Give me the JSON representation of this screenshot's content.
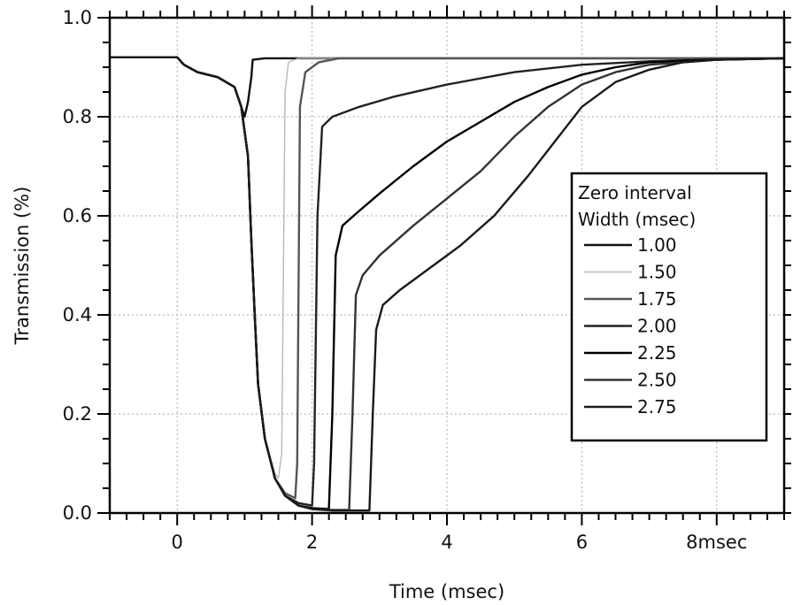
{
  "chart_data": {
    "type": "line",
    "title": "",
    "xlabel": "Time (msec)",
    "ylabel": "Transmission (%)",
    "xlim": [
      -1,
      9
    ],
    "ylim": [
      0.0,
      1.0
    ],
    "grid": true,
    "legend_position": "right",
    "x_ticks": [
      {
        "value": 0,
        "label": "0"
      },
      {
        "value": 2,
        "label": "2"
      },
      {
        "value": 4,
        "label": "4"
      },
      {
        "value": 6,
        "label": "6"
      },
      {
        "value": 8,
        "label": "8msec"
      }
    ],
    "y_ticks": [
      {
        "value": 0.0,
        "label": "0.0"
      },
      {
        "value": 0.2,
        "label": "0.2"
      },
      {
        "value": 0.4,
        "label": "0.4"
      },
      {
        "value": 0.6,
        "label": "0.6"
      },
      {
        "value": 0.8,
        "label": "0.8"
      },
      {
        "value": 1.0,
        "label": "1.0"
      }
    ],
    "legend": {
      "title_line1": "Zero interval",
      "title_line2": "Width (msec)"
    },
    "series": [
      {
        "name": "1.00",
        "color": "#111111",
        "points": [
          [
            -1,
            0.92
          ],
          [
            0,
            0.92
          ],
          [
            0.1,
            0.905
          ],
          [
            0.3,
            0.89
          ],
          [
            0.6,
            0.88
          ],
          [
            0.85,
            0.86
          ],
          [
            0.95,
            0.82
          ],
          [
            1.0,
            0.8
          ],
          [
            1.05,
            0.83
          ],
          [
            1.1,
            0.88
          ],
          [
            1.12,
            0.915
          ],
          [
            1.3,
            0.918
          ],
          [
            9,
            0.918
          ]
        ]
      },
      {
        "name": "1.50",
        "color": "#b8b8b8",
        "points": [
          [
            -1,
            0.92
          ],
          [
            0,
            0.92
          ],
          [
            0.1,
            0.905
          ],
          [
            0.3,
            0.89
          ],
          [
            0.6,
            0.88
          ],
          [
            0.85,
            0.86
          ],
          [
            0.95,
            0.82
          ],
          [
            1.05,
            0.72
          ],
          [
            1.1,
            0.55
          ],
          [
            1.15,
            0.4
          ],
          [
            1.2,
            0.26
          ],
          [
            1.3,
            0.15
          ],
          [
            1.45,
            0.08
          ],
          [
            1.5,
            0.07
          ],
          [
            1.55,
            0.12
          ],
          [
            1.6,
            0.85
          ],
          [
            1.65,
            0.91
          ],
          [
            1.8,
            0.918
          ],
          [
            9,
            0.918
          ]
        ]
      },
      {
        "name": "1.75",
        "color": "#555555",
        "points": [
          [
            -1,
            0.92
          ],
          [
            0,
            0.92
          ],
          [
            0.1,
            0.905
          ],
          [
            0.3,
            0.89
          ],
          [
            0.6,
            0.88
          ],
          [
            0.85,
            0.86
          ],
          [
            0.95,
            0.82
          ],
          [
            1.05,
            0.72
          ],
          [
            1.1,
            0.55
          ],
          [
            1.15,
            0.4
          ],
          [
            1.2,
            0.26
          ],
          [
            1.3,
            0.15
          ],
          [
            1.45,
            0.07
          ],
          [
            1.6,
            0.04
          ],
          [
            1.75,
            0.03
          ],
          [
            1.78,
            0.1
          ],
          [
            1.82,
            0.82
          ],
          [
            1.9,
            0.89
          ],
          [
            2.1,
            0.91
          ],
          [
            2.4,
            0.918
          ],
          [
            9,
            0.918
          ]
        ]
      },
      {
        "name": "2.00",
        "color": "#222222",
        "points": [
          [
            -1,
            0.92
          ],
          [
            0,
            0.92
          ],
          [
            0.1,
            0.905
          ],
          [
            0.3,
            0.89
          ],
          [
            0.6,
            0.88
          ],
          [
            0.85,
            0.86
          ],
          [
            0.95,
            0.82
          ],
          [
            1.05,
            0.72
          ],
          [
            1.1,
            0.55
          ],
          [
            1.15,
            0.4
          ],
          [
            1.2,
            0.26
          ],
          [
            1.3,
            0.15
          ],
          [
            1.45,
            0.07
          ],
          [
            1.6,
            0.035
          ],
          [
            1.8,
            0.02
          ],
          [
            2.0,
            0.015
          ],
          [
            2.03,
            0.1
          ],
          [
            2.08,
            0.6
          ],
          [
            2.15,
            0.78
          ],
          [
            2.3,
            0.8
          ],
          [
            2.7,
            0.82
          ],
          [
            3.2,
            0.84
          ],
          [
            4.0,
            0.865
          ],
          [
            5.0,
            0.89
          ],
          [
            6.0,
            0.905
          ],
          [
            7.0,
            0.912
          ],
          [
            8.0,
            0.916
          ],
          [
            9,
            0.918
          ]
        ]
      },
      {
        "name": "2.25",
        "color": "#000000",
        "points": [
          [
            -1,
            0.92
          ],
          [
            0,
            0.92
          ],
          [
            0.1,
            0.905
          ],
          [
            0.3,
            0.89
          ],
          [
            0.6,
            0.88
          ],
          [
            0.85,
            0.86
          ],
          [
            0.95,
            0.82
          ],
          [
            1.05,
            0.72
          ],
          [
            1.1,
            0.55
          ],
          [
            1.15,
            0.4
          ],
          [
            1.2,
            0.26
          ],
          [
            1.3,
            0.15
          ],
          [
            1.45,
            0.07
          ],
          [
            1.6,
            0.035
          ],
          [
            1.8,
            0.015
          ],
          [
            2.0,
            0.01
          ],
          [
            2.25,
            0.008
          ],
          [
            2.3,
            0.2
          ],
          [
            2.35,
            0.52
          ],
          [
            2.45,
            0.58
          ],
          [
            2.7,
            0.61
          ],
          [
            3.0,
            0.645
          ],
          [
            3.5,
            0.7
          ],
          [
            4.0,
            0.75
          ],
          [
            4.5,
            0.79
          ],
          [
            5.0,
            0.83
          ],
          [
            5.5,
            0.86
          ],
          [
            6.0,
            0.885
          ],
          [
            6.5,
            0.9
          ],
          [
            7.0,
            0.91
          ],
          [
            8.0,
            0.915
          ],
          [
            9,
            0.918
          ]
        ]
      },
      {
        "name": "2.50",
        "color": "#333333",
        "points": [
          [
            -1,
            0.92
          ],
          [
            0,
            0.92
          ],
          [
            0.1,
            0.905
          ],
          [
            0.3,
            0.89
          ],
          [
            0.6,
            0.88
          ],
          [
            0.85,
            0.86
          ],
          [
            0.95,
            0.82
          ],
          [
            1.05,
            0.72
          ],
          [
            1.1,
            0.55
          ],
          [
            1.15,
            0.4
          ],
          [
            1.2,
            0.26
          ],
          [
            1.3,
            0.15
          ],
          [
            1.45,
            0.07
          ],
          [
            1.6,
            0.035
          ],
          [
            1.8,
            0.015
          ],
          [
            2.0,
            0.008
          ],
          [
            2.3,
            0.006
          ],
          [
            2.55,
            0.006
          ],
          [
            2.6,
            0.2
          ],
          [
            2.65,
            0.44
          ],
          [
            2.75,
            0.48
          ],
          [
            3.0,
            0.52
          ],
          [
            3.5,
            0.58
          ],
          [
            4.0,
            0.635
          ],
          [
            4.5,
            0.69
          ],
          [
            5.0,
            0.76
          ],
          [
            5.5,
            0.82
          ],
          [
            6.0,
            0.865
          ],
          [
            6.5,
            0.89
          ],
          [
            7.0,
            0.905
          ],
          [
            8.0,
            0.915
          ],
          [
            9,
            0.918
          ]
        ]
      },
      {
        "name": "2.75",
        "color": "#1a1a1a",
        "points": [
          [
            -1,
            0.92
          ],
          [
            0,
            0.92
          ],
          [
            0.1,
            0.905
          ],
          [
            0.3,
            0.89
          ],
          [
            0.6,
            0.88
          ],
          [
            0.85,
            0.86
          ],
          [
            0.95,
            0.82
          ],
          [
            1.05,
            0.72
          ],
          [
            1.1,
            0.55
          ],
          [
            1.15,
            0.4
          ],
          [
            1.2,
            0.26
          ],
          [
            1.3,
            0.15
          ],
          [
            1.45,
            0.07
          ],
          [
            1.6,
            0.035
          ],
          [
            1.8,
            0.015
          ],
          [
            2.0,
            0.008
          ],
          [
            2.3,
            0.005
          ],
          [
            2.6,
            0.005
          ],
          [
            2.85,
            0.005
          ],
          [
            2.9,
            0.2
          ],
          [
            2.95,
            0.37
          ],
          [
            3.05,
            0.42
          ],
          [
            3.3,
            0.45
          ],
          [
            3.7,
            0.49
          ],
          [
            4.2,
            0.54
          ],
          [
            4.7,
            0.6
          ],
          [
            5.2,
            0.68
          ],
          [
            5.6,
            0.75
          ],
          [
            6.0,
            0.82
          ],
          [
            6.5,
            0.87
          ],
          [
            7.0,
            0.895
          ],
          [
            7.5,
            0.91
          ],
          [
            8.0,
            0.915
          ],
          [
            9,
            0.918
          ]
        ]
      }
    ]
  }
}
